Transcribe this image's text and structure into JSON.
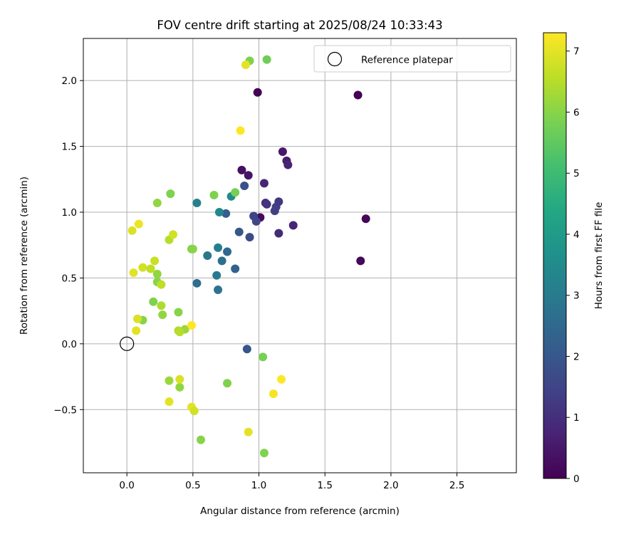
{
  "chart_data": {
    "type": "scatter",
    "title": "FOV centre drift starting at 2025/08/24 10:33:43",
    "xlabel": "Angular distance from reference (arcmin)",
    "ylabel": "Rotation from reference (arcmin)",
    "xlim": [
      -0.33,
      2.95
    ],
    "ylim": [
      -0.98,
      2.32
    ],
    "xticks": [
      0.0,
      0.5,
      1.0,
      1.5,
      2.0,
      2.5
    ],
    "xtick_labels": [
      "0.0",
      "0.5",
      "1.0",
      "1.5",
      "2.0",
      "2.5"
    ],
    "yticks": [
      -0.5,
      0.0,
      0.5,
      1.0,
      1.5,
      2.0
    ],
    "ytick_labels": [
      "−0.5",
      "0.0",
      "0.5",
      "1.0",
      "1.5",
      "2.0"
    ],
    "grid": true,
    "legend": {
      "position": "top-right",
      "entries": [
        "Reference platepar"
      ]
    },
    "reference_point": {
      "x": 0.0,
      "y": 0.0,
      "label": "Reference platepar"
    },
    "colorbar": {
      "label": "Hours from first FF file",
      "min": 0,
      "max": 7.3,
      "ticks": [
        0,
        1,
        2,
        3,
        4,
        5,
        6,
        7
      ],
      "tick_labels": [
        "0",
        "1",
        "2",
        "3",
        "4",
        "5",
        "6",
        "7"
      ],
      "colormap": "viridis"
    },
    "points": [
      {
        "x": 0.99,
        "y": 1.91,
        "c": 0.0
      },
      {
        "x": 1.75,
        "y": 1.89,
        "c": 0.05
      },
      {
        "x": 1.81,
        "y": 0.95,
        "c": 0.1
      },
      {
        "x": 1.77,
        "y": 0.63,
        "c": 0.15
      },
      {
        "x": 1.01,
        "y": 0.96,
        "c": 0.2
      },
      {
        "x": 0.87,
        "y": 1.32,
        "c": 0.3
      },
      {
        "x": 0.92,
        "y": 1.28,
        "c": 0.4
      },
      {
        "x": 1.18,
        "y": 1.46,
        "c": 0.5
      },
      {
        "x": 1.21,
        "y": 1.39,
        "c": 0.6
      },
      {
        "x": 1.22,
        "y": 1.36,
        "c": 0.7
      },
      {
        "x": 1.04,
        "y": 1.22,
        "c": 0.8
      },
      {
        "x": 1.26,
        "y": 0.9,
        "c": 0.8
      },
      {
        "x": 1.15,
        "y": 0.84,
        "c": 0.9
      },
      {
        "x": 1.05,
        "y": 1.07,
        "c": 1.0
      },
      {
        "x": 1.06,
        "y": 1.06,
        "c": 1.1
      },
      {
        "x": 1.15,
        "y": 1.08,
        "c": 1.2
      },
      {
        "x": 1.13,
        "y": 1.04,
        "c": 1.3
      },
      {
        "x": 1.12,
        "y": 1.01,
        "c": 1.4
      },
      {
        "x": 0.96,
        "y": 0.97,
        "c": 1.5
      },
      {
        "x": 0.98,
        "y": 0.93,
        "c": 1.6
      },
      {
        "x": 0.93,
        "y": 0.81,
        "c": 1.7
      },
      {
        "x": 0.89,
        "y": 1.2,
        "c": 1.8
      },
      {
        "x": 0.85,
        "y": 0.85,
        "c": 2.0
      },
      {
        "x": 0.91,
        "y": -0.04,
        "c": 2.0
      },
      {
        "x": 0.75,
        "y": 0.99,
        "c": 2.2
      },
      {
        "x": 0.82,
        "y": 0.57,
        "c": 2.3
      },
      {
        "x": 0.76,
        "y": 0.7,
        "c": 2.5
      },
      {
        "x": 0.53,
        "y": 0.46,
        "c": 2.6
      },
      {
        "x": 0.72,
        "y": 0.63,
        "c": 2.7
      },
      {
        "x": 0.69,
        "y": 0.41,
        "c": 2.8
      },
      {
        "x": 0.61,
        "y": 0.67,
        "c": 2.9
      },
      {
        "x": 0.68,
        "y": 0.52,
        "c": 3.0
      },
      {
        "x": 0.69,
        "y": 0.73,
        "c": 3.1
      },
      {
        "x": 0.53,
        "y": 1.07,
        "c": 3.2
      },
      {
        "x": 0.7,
        "y": 1.0,
        "c": 3.4
      },
      {
        "x": 0.79,
        "y": 1.12,
        "c": 3.5
      },
      {
        "x": 0.93,
        "y": 2.15,
        "c": 5.9
      },
      {
        "x": 1.06,
        "y": 2.16,
        "c": 5.7
      },
      {
        "x": 0.82,
        "y": 1.15,
        "c": 5.8
      },
      {
        "x": 0.66,
        "y": 1.13,
        "c": 5.9
      },
      {
        "x": 0.49,
        "y": 0.72,
        "c": 5.9
      },
      {
        "x": 0.5,
        "y": 0.72,
        "c": 6.0
      },
      {
        "x": 0.33,
        "y": 1.14,
        "c": 5.9
      },
      {
        "x": 0.23,
        "y": 1.07,
        "c": 6.1
      },
      {
        "x": 0.2,
        "y": 0.32,
        "c": 5.9
      },
      {
        "x": 0.12,
        "y": 0.18,
        "c": 6.0
      },
      {
        "x": 0.27,
        "y": 0.22,
        "c": 6.1
      },
      {
        "x": 0.39,
        "y": 0.24,
        "c": 6.0
      },
      {
        "x": 0.23,
        "y": 0.53,
        "c": 6.1
      },
      {
        "x": 0.23,
        "y": 0.47,
        "c": 6.0
      },
      {
        "x": 0.4,
        "y": -0.33,
        "c": 6.1
      },
      {
        "x": 0.76,
        "y": -0.3,
        "c": 5.9
      },
      {
        "x": 1.03,
        "y": -0.1,
        "c": 5.8
      },
      {
        "x": 1.04,
        "y": -0.83,
        "c": 5.9
      },
      {
        "x": 0.56,
        "y": -0.73,
        "c": 6.0
      },
      {
        "x": 0.32,
        "y": -0.28,
        "c": 6.2
      },
      {
        "x": 0.44,
        "y": 0.11,
        "c": 6.2
      },
      {
        "x": 0.39,
        "y": 0.1,
        "c": 6.4
      },
      {
        "x": 0.4,
        "y": 0.09,
        "c": 6.5
      },
      {
        "x": 0.26,
        "y": 0.29,
        "c": 6.4
      },
      {
        "x": 0.26,
        "y": 0.45,
        "c": 6.6
      },
      {
        "x": 0.18,
        "y": 0.57,
        "c": 6.6
      },
      {
        "x": 0.21,
        "y": 0.63,
        "c": 6.7
      },
      {
        "x": 0.12,
        "y": 0.58,
        "c": 6.8
      },
      {
        "x": 0.05,
        "y": 0.54,
        "c": 7.0
      },
      {
        "x": 0.32,
        "y": 0.79,
        "c": 6.5
      },
      {
        "x": 0.35,
        "y": 0.83,
        "c": 6.8
      },
      {
        "x": 0.04,
        "y": 0.86,
        "c": 6.9
      },
      {
        "x": 0.09,
        "y": 0.91,
        "c": 7.1
      },
      {
        "x": 0.08,
        "y": 0.19,
        "c": 6.9
      },
      {
        "x": 0.07,
        "y": 0.1,
        "c": 7.0
      },
      {
        "x": 0.49,
        "y": -0.48,
        "c": 7.0
      },
      {
        "x": 0.51,
        "y": -0.51,
        "c": 6.8
      },
      {
        "x": 0.4,
        "y": -0.27,
        "c": 6.9
      },
      {
        "x": 0.32,
        "y": -0.44,
        "c": 7.0
      },
      {
        "x": 0.49,
        "y": 0.14,
        "c": 7.3
      },
      {
        "x": 0.92,
        "y": -0.67,
        "c": 7.0
      },
      {
        "x": 1.11,
        "y": -0.38,
        "c": 7.2
      },
      {
        "x": 1.17,
        "y": -0.27,
        "c": 7.3
      },
      {
        "x": 0.86,
        "y": 1.62,
        "c": 7.3
      },
      {
        "x": 0.9,
        "y": 2.12,
        "c": 7.0
      }
    ]
  }
}
